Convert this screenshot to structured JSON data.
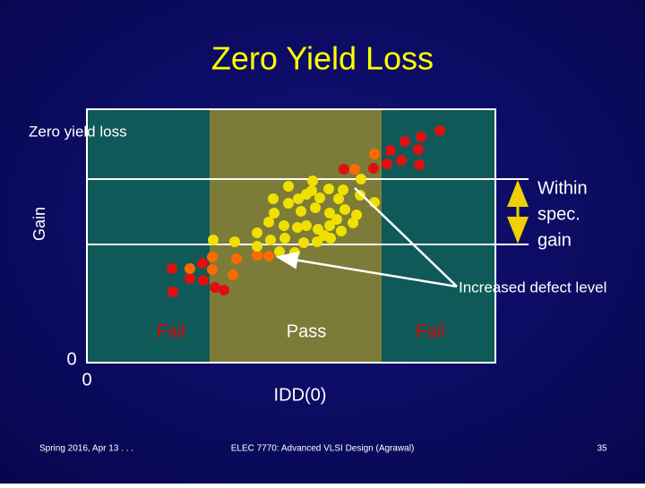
{
  "header": {
    "title": "Zero Yield Loss"
  },
  "diagram": {
    "corner_label": "Zero yield loss",
    "y_axis_label": "Gain",
    "spec_label": [
      "Within",
      "spec.",
      "gain"
    ],
    "defect_label": "Increased defect level",
    "regions": [
      "Fail",
      "Pass",
      "Fail"
    ],
    "origin": [
      "0",
      "0"
    ],
    "x_axis_label": "IDD(0)"
  },
  "footer": {
    "left": "Spring 2016, Apr 13 . . .",
    "center": "ELEC 7770: Advanced VLSI Design (Agrawal)",
    "right": "35"
  }
}
